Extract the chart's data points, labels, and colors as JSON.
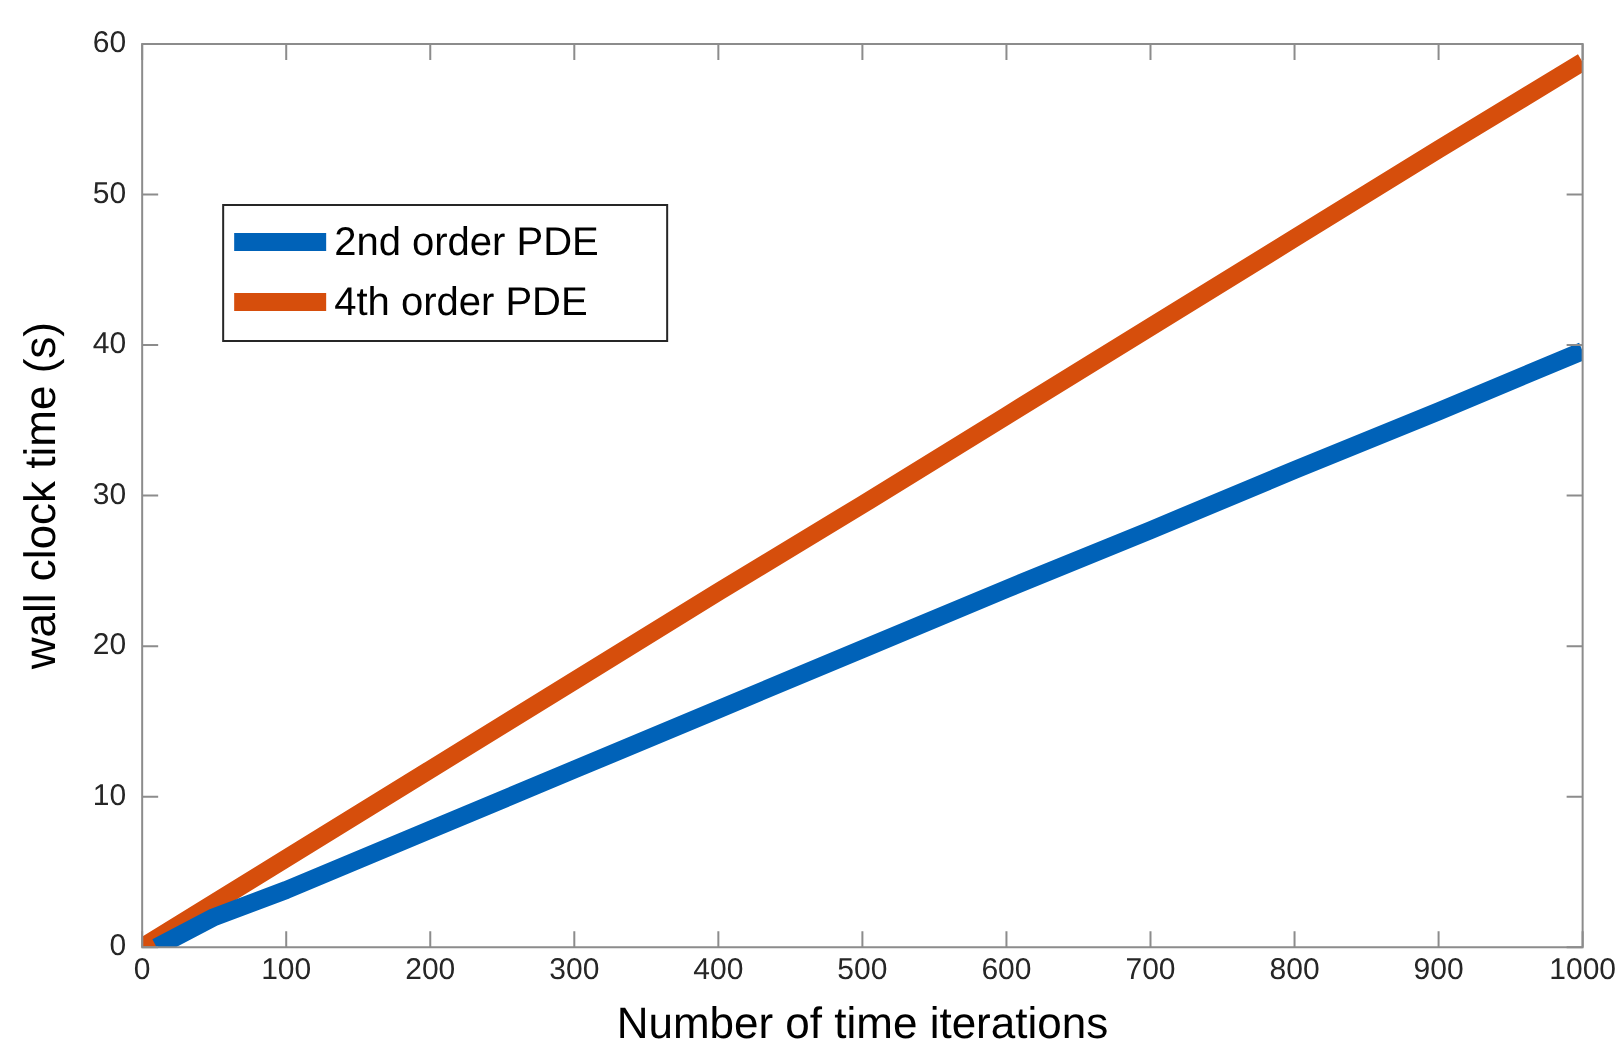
{
  "chart_data": {
    "type": "line",
    "xlabel": "Number of time iterations",
    "ylabel": "wall clock time (s)",
    "xlim": [
      0,
      1000
    ],
    "xticks": [
      0,
      100,
      200,
      300,
      400,
      500,
      600,
      700,
      800,
      900,
      1000
    ],
    "ylim": [
      0,
      60
    ],
    "yticks": [
      0,
      10,
      20,
      30,
      40,
      50,
      60
    ],
    "grid": false,
    "legend": "top left",
    "marker": "none",
    "line_style": "solid",
    "series": [
      {
        "name": "2nd order PDE",
        "color": "#0062b8",
        "x": [
          10,
          50,
          100,
          200,
          300,
          400,
          500,
          600,
          700,
          800,
          900,
          1000
        ],
        "values": [
          0,
          2.0,
          3.8,
          7.8,
          11.8,
          15.8,
          19.8,
          23.8,
          27.7,
          31.7,
          35.6,
          39.6
        ]
      },
      {
        "name": "4th order PDE",
        "color": "#d64e0c",
        "x": [
          0,
          100,
          200,
          300,
          400,
          500,
          600,
          700,
          800,
          900,
          1000
        ],
        "values": [
          0,
          5.9,
          11.8,
          17.7,
          23.6,
          29.4,
          35.3,
          41.2,
          47.1,
          53.0,
          58.8
        ]
      }
    ]
  }
}
